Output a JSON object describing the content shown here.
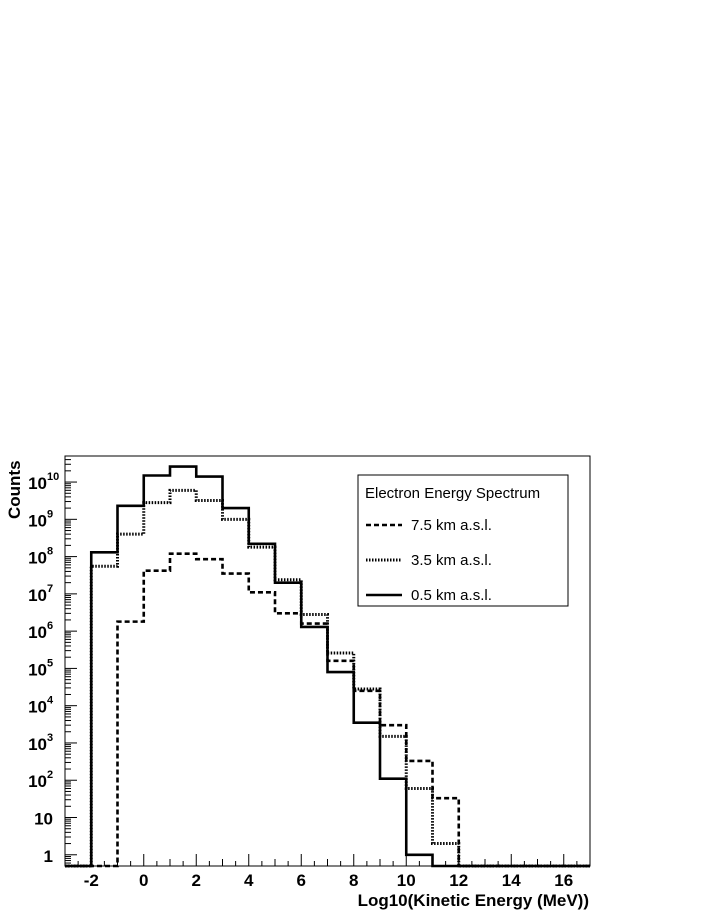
{
  "chart_data": {
    "type": "histogram",
    "title": "",
    "xlabel": "Log10(Kinetic Energy (MeV))",
    "ylabel": "Counts",
    "xlim": [
      -3,
      17
    ],
    "ylim": [
      0.5,
      50000000000
    ],
    "yscale": "log",
    "grid": false,
    "x_ticks": [
      -2,
      0,
      2,
      4,
      6,
      8,
      10,
      12,
      14,
      16
    ],
    "y_ticks": [
      {
        "value": 1,
        "base": "1",
        "exp": ""
      },
      {
        "value": 10,
        "base": "10",
        "exp": ""
      },
      {
        "value": 100,
        "base": "10",
        "exp": "2"
      },
      {
        "value": 1000,
        "base": "10",
        "exp": "3"
      },
      {
        "value": 10000,
        "base": "10",
        "exp": "4"
      },
      {
        "value": 100000,
        "base": "10",
        "exp": "5"
      },
      {
        "value": 1000000,
        "base": "10",
        "exp": "6"
      },
      {
        "value": 10000000,
        "base": "10",
        "exp": "7"
      },
      {
        "value": 100000000,
        "base": "10",
        "exp": "8"
      },
      {
        "value": 1000000000,
        "base": "10",
        "exp": "9"
      },
      {
        "value": 10000000000,
        "base": "10",
        "exp": "10"
      }
    ],
    "bin_edges": [
      -2,
      -1,
      0,
      1,
      2,
      3,
      4,
      5,
      6,
      7,
      8,
      9,
      10,
      11,
      12
    ],
    "legend": {
      "title": "Electron Energy Spectrum",
      "position": "top-right"
    },
    "series": [
      {
        "name": "7.5 km a.s.l.",
        "style": "dashed",
        "values": [
          0,
          1800000,
          42000000,
          120000000,
          85000000,
          35000000,
          11000000,
          3000000,
          1600000,
          160000,
          25000,
          3000,
          330,
          33
        ]
      },
      {
        "name": "3.5 km a.s.l.",
        "style": "dotted",
        "values": [
          55000000,
          400000000,
          2800000000,
          6000000000,
          3200000000,
          1000000000,
          180000000,
          24000000,
          2800000,
          260000,
          28000,
          1500,
          60,
          2
        ]
      },
      {
        "name": "0.5 km a.s.l.",
        "style": "solid",
        "values": [
          130000000,
          2300000000,
          15000000000,
          26000000000,
          14000000000,
          2000000000,
          220000000,
          20000000,
          1300000,
          80000,
          3500,
          110,
          1,
          0
        ]
      }
    ]
  }
}
